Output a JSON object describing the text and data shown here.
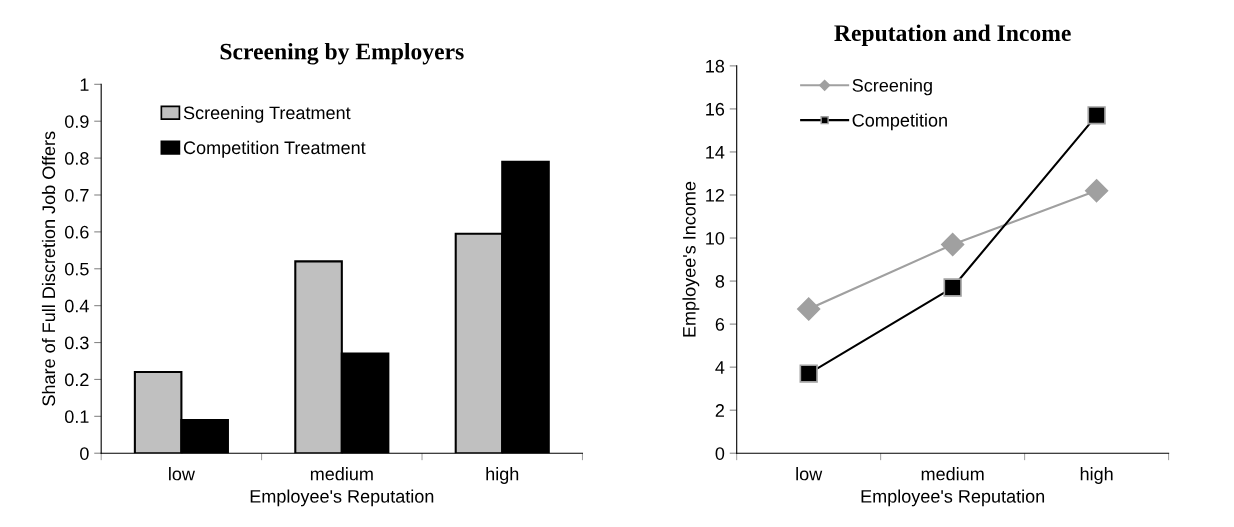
{
  "chart_data": [
    {
      "type": "bar",
      "title": "Screening by Employers",
      "xlabel": "Employee's Reputation",
      "ylabel": "Share of Full Discretion Job Offers",
      "categories": [
        "low",
        "medium",
        "high"
      ],
      "series": [
        {
          "name": "Screening Treatment",
          "color": "#c0c0c0",
          "values": [
            0.22,
            0.52,
            0.595
          ]
        },
        {
          "name": "Competition Treatment",
          "color": "#000000",
          "values": [
            0.09,
            0.27,
            0.79
          ]
        }
      ],
      "ylim": [
        0,
        1
      ],
      "yticks": [
        0,
        0.1,
        0.2,
        0.3,
        0.4,
        0.5,
        0.6,
        0.7,
        0.8,
        0.9,
        1
      ],
      "grid": false,
      "legend": "top left"
    },
    {
      "type": "line",
      "title": "Reputation and Income",
      "xlabel": "Employee's Reputation",
      "ylabel": "Employee's Income",
      "categories": [
        "low",
        "medium",
        "high"
      ],
      "series": [
        {
          "name": "Screening",
          "color": "#a0a0a0",
          "values": [
            6.7,
            9.7,
            12.2
          ],
          "marker": "diamond"
        },
        {
          "name": "Competition",
          "color": "#000000",
          "values": [
            3.7,
            7.7,
            15.7
          ],
          "marker": "square"
        }
      ],
      "ylim": [
        0,
        18
      ],
      "yticks": [
        0,
        2,
        4,
        6,
        8,
        10,
        12,
        14,
        16,
        18
      ],
      "grid": false,
      "legend": "top left"
    }
  ]
}
